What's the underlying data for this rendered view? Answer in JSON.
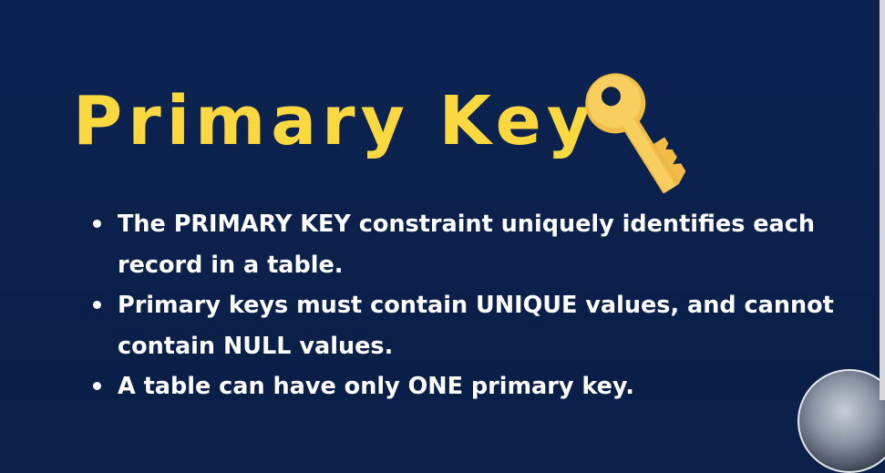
{
  "slide": {
    "title": "Primary Key",
    "title_icon": "key-icon",
    "bullets": [
      "The PRIMARY KEY constraint uniquely identifies each record in a table.",
      "Primary keys must contain UNIQUE values, and cannot contain NULL values.",
      "A table can have only ONE primary key."
    ]
  },
  "colors": {
    "background": "#0b2149",
    "title": "#fbd83f",
    "text": "#ffffff",
    "key": "#f4c44e"
  }
}
